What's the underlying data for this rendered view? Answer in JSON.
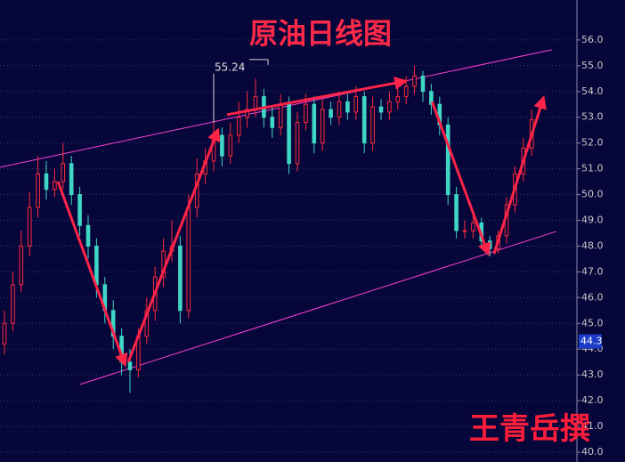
{
  "chart_data": {
    "type": "candlestick",
    "title": "原油日线图",
    "watermark": "王青岳撰",
    "up_color": "#ff2a3c",
    "down_color": "#3fd6c6",
    "channel_color": "#ff3fd0",
    "arrow_color": "#ff2448",
    "grid": true,
    "ylim": [
      39.62,
      57.55
    ],
    "yticks": [
      {
        "value": 40,
        "label": "40.0"
      },
      {
        "value": 41,
        "label": "41.0"
      },
      {
        "value": 42,
        "label": "42.0"
      },
      {
        "value": 43,
        "label": "43.0"
      },
      {
        "value": 44,
        "label": "44.0"
      },
      {
        "value": 45,
        "label": "45.0"
      },
      {
        "value": 46,
        "label": "46.0"
      },
      {
        "value": 47,
        "label": "47.0"
      },
      {
        "value": 48,
        "label": "48.0"
      },
      {
        "value": 49,
        "label": "49.0"
      },
      {
        "value": 50,
        "label": "50.0"
      },
      {
        "value": 51,
        "label": "51.0"
      },
      {
        "value": 52,
        "label": "52.0"
      },
      {
        "value": 53,
        "label": "53.0"
      },
      {
        "value": 54,
        "label": "54.0"
      },
      {
        "value": 55,
        "label": "55.0"
      },
      {
        "value": 56,
        "label": "56.0"
      }
    ],
    "open": [
      44.2,
      45.0,
      46.5,
      48.0,
      49.5,
      50.8,
      50.2,
      50.5,
      51.2,
      50.0,
      48.8,
      48.0,
      46.5,
      45.5,
      44.5,
      43.5,
      43.2,
      44.5,
      45.5,
      46.8,
      47.8,
      48.0,
      45.5,
      49.5,
      50.8,
      51.3,
      52.3,
      51.5,
      52.3,
      53.0,
      53.3,
      53.8,
      53.0,
      52.6,
      53.5,
      51.2,
      52.8,
      53.5,
      52.0,
      53.3,
      53.0,
      53.6,
      53.2,
      53.8,
      52.0,
      53.4,
      53.2,
      53.6,
      53.8,
      54.2,
      54.6,
      54.0,
      53.5,
      52.7,
      50.0,
      48.6,
      48.6,
      48.9,
      48.2,
      47.9,
      48.4,
      49.6,
      50.8,
      51.8
    ],
    "high": [
      45.5,
      47.0,
      48.6,
      50.1,
      51.5,
      51.3,
      51.0,
      52.0,
      51.5,
      50.3,
      49.2,
      48.3,
      46.8,
      45.9,
      44.8,
      44.0,
      44.8,
      46.0,
      47.2,
      48.3,
      49.0,
      48.4,
      50.0,
      51.4,
      51.8,
      52.8,
      52.6,
      52.8,
      53.6,
      54.0,
      54.5,
      54.1,
      53.4,
      53.9,
      53.8,
      53.2,
      53.9,
      53.8,
      53.7,
      53.6,
      54.0,
      53.9,
      54.2,
      54.0,
      53.8,
      53.7,
      54.0,
      54.2,
      54.6,
      55.0,
      54.8,
      54.3,
      53.8,
      53.0,
      50.3,
      49.0,
      49.2,
      49.1,
      48.4,
      48.6,
      49.9,
      51.1,
      52.2,
      53.3
    ],
    "low": [
      43.8,
      44.7,
      46.2,
      47.6,
      49.1,
      49.8,
      49.9,
      50.2,
      49.6,
      48.4,
      47.5,
      46.0,
      45.0,
      44.0,
      43.0,
      42.3,
      42.9,
      44.2,
      45.1,
      46.4,
      47.4,
      45.0,
      45.2,
      49.1,
      50.4,
      50.9,
      51.1,
      51.2,
      52.0,
      52.6,
      53.0,
      52.6,
      52.2,
      52.3,
      50.8,
      50.9,
      52.5,
      51.6,
      51.7,
      52.7,
      52.7,
      52.9,
      52.9,
      51.6,
      51.7,
      52.9,
      52.9,
      53.3,
      53.5,
      53.9,
      53.6,
      53.1,
      52.3,
      49.6,
      48.3,
      48.3,
      48.3,
      47.9,
      47.6,
      47.7,
      48.1,
      49.3,
      50.5,
      51.5
    ],
    "close": [
      45.0,
      46.5,
      48.0,
      49.5,
      50.8,
      50.2,
      50.5,
      51.2,
      50.0,
      48.8,
      48.0,
      46.5,
      45.5,
      44.5,
      43.5,
      43.2,
      44.5,
      45.5,
      46.8,
      47.8,
      48.0,
      45.5,
      49.5,
      50.8,
      51.3,
      52.3,
      51.5,
      52.3,
      53.0,
      53.3,
      53.8,
      53.0,
      52.6,
      53.5,
      51.2,
      52.8,
      53.5,
      52.0,
      53.3,
      53.0,
      53.6,
      53.2,
      53.8,
      52.0,
      53.4,
      53.2,
      53.6,
      53.8,
      54.2,
      54.6,
      54.0,
      53.5,
      52.7,
      50.0,
      48.6,
      48.6,
      48.9,
      48.2,
      47.9,
      48.4,
      49.6,
      50.8,
      51.8,
      52.9
    ],
    "channels": [
      {
        "from": [
          -0.5,
          51.06
        ],
        "to": [
          65.4,
          55.62
        ]
      },
      {
        "from": [
          9.0,
          42.63
        ],
        "to": [
          65.95,
          48.57
        ]
      }
    ],
    "arrows": [
      {
        "from": [
          6.4,
          50.5
        ],
        "to": [
          14.4,
          43.4
        ]
      },
      {
        "from": [
          14.8,
          43.5
        ],
        "to": [
          25.5,
          52.5
        ]
      },
      {
        "from": [
          26.6,
          53.1
        ],
        "to": [
          47.9,
          54.4
        ]
      },
      {
        "from": [
          51.1,
          53.6
        ],
        "to": [
          57.8,
          47.7
        ]
      },
      {
        "from": [
          58.5,
          47.7
        ],
        "to": [
          64.4,
          53.75
        ]
      }
    ],
    "annotation": {
      "text": "55.24",
      "value": 55.24,
      "from": 25,
      "to": 31.5
    },
    "last_price": 44.3
  }
}
